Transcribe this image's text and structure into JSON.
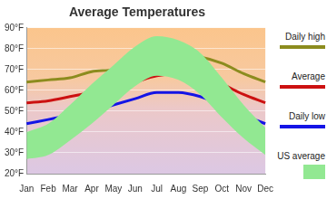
{
  "chart_data": {
    "type": "line",
    "title": "Average Temperatures",
    "categories": [
      "Jan",
      "Feb",
      "Mar",
      "Apr",
      "May",
      "Jun",
      "Jul",
      "Aug",
      "Sep",
      "Oct",
      "Nov",
      "Dec"
    ],
    "series": [
      {
        "name": "Daily high",
        "color": "#8c8c1e",
        "values": [
          64,
          65,
          66,
          69,
          70,
          73,
          76,
          77,
          76,
          73,
          68,
          64
        ]
      },
      {
        "name": "Average",
        "color": "#cc1111",
        "values": [
          54,
          55,
          57,
          59,
          61,
          64,
          67,
          68,
          67,
          63,
          58,
          54
        ]
      },
      {
        "name": "Daily low",
        "color": "#1414e6",
        "values": [
          44,
          46,
          48,
          50,
          53,
          56,
          59,
          59,
          57,
          53,
          48,
          44
        ]
      },
      {
        "name": "US average",
        "type": "range",
        "color": "#92e892",
        "values": [
          [
            27,
            40
          ],
          [
            29,
            44
          ],
          [
            36,
            53
          ],
          [
            44,
            63
          ],
          [
            53,
            72
          ],
          [
            62,
            81
          ],
          [
            67,
            86
          ],
          [
            65,
            84
          ],
          [
            58,
            78
          ],
          [
            47,
            66
          ],
          [
            37,
            53
          ],
          [
            29,
            42
          ]
        ]
      }
    ],
    "ylim": [
      20,
      90
    ],
    "yticks": [
      {
        "value": 20,
        "label": "20°F"
      },
      {
        "value": 30,
        "label": "30°F"
      },
      {
        "value": 40,
        "label": "40°F"
      },
      {
        "value": 50,
        "label": "50°F"
      },
      {
        "value": 60,
        "label": "60°F"
      },
      {
        "value": 70,
        "label": "70°F"
      },
      {
        "value": 80,
        "label": "80°F"
      },
      {
        "value": 90,
        "label": "90°F"
      }
    ],
    "grid": true,
    "legend": "right"
  }
}
